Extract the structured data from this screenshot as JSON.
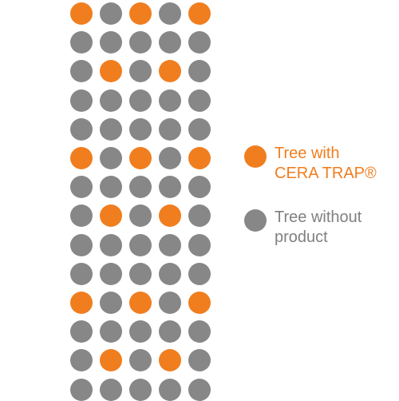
{
  "colors": {
    "with_product": "#f07e1f",
    "without_product": "#878787",
    "legend_text_with": "#f07e1f",
    "legend_text_without": "#808080"
  },
  "legend": {
    "with_product": {
      "line1": "Tree with",
      "line2": "CERA TRAP®"
    },
    "without_product": {
      "line1": "Tree without",
      "line2": "product"
    }
  },
  "grid": {
    "columns": 5,
    "rows": 14,
    "pattern": [
      [
        "with",
        "without",
        "with",
        "without",
        "with"
      ],
      [
        "without",
        "without",
        "without",
        "without",
        "without"
      ],
      [
        "without",
        "with",
        "without",
        "with",
        "without"
      ],
      [
        "without",
        "without",
        "without",
        "without",
        "without"
      ],
      [
        "without",
        "without",
        "without",
        "without",
        "without"
      ],
      [
        "with",
        "without",
        "with",
        "without",
        "with"
      ],
      [
        "without",
        "without",
        "without",
        "without",
        "without"
      ],
      [
        "without",
        "with",
        "without",
        "with",
        "without"
      ],
      [
        "without",
        "without",
        "without",
        "without",
        "without"
      ],
      [
        "without",
        "without",
        "without",
        "without",
        "without"
      ],
      [
        "with",
        "without",
        "with",
        "without",
        "with"
      ],
      [
        "without",
        "without",
        "without",
        "without",
        "without"
      ],
      [
        "without",
        "with",
        "without",
        "with",
        "without"
      ],
      [
        "without",
        "without",
        "without",
        "without",
        "without"
      ]
    ]
  }
}
